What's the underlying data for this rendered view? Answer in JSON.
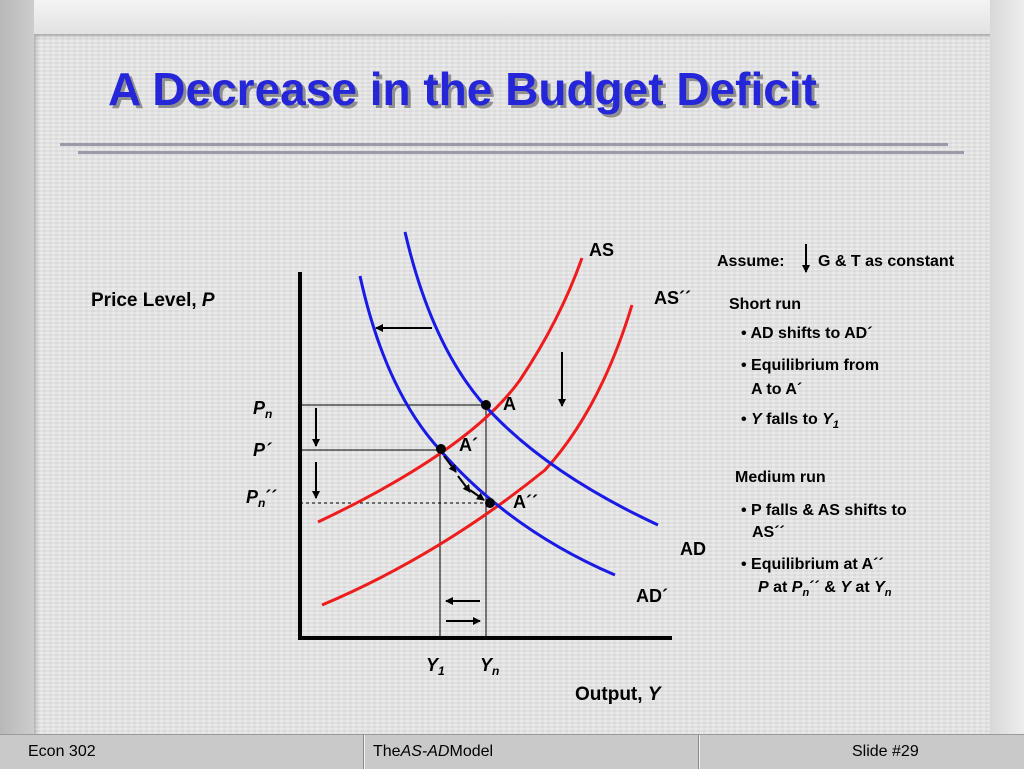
{
  "slide": {
    "title": "A Decrease in the Budget Deficit"
  },
  "chart_labels": {
    "y_axis": "Price Level, ",
    "y_axis_var": "P",
    "x_axis": "Output, ",
    "x_axis_var": "Y",
    "curve_as": "AS",
    "curve_as2": "AS´´",
    "curve_ad": "AD",
    "curve_ad2": "AD´",
    "point_a": "A",
    "point_a1": "A´",
    "point_a2": "A´´",
    "pn_base": "P",
    "pn_sub": "n",
    "p1": "P´",
    "pn2_base": "P",
    "pn2_sub": "n",
    "pn2_mark": "´´",
    "y1_base": "Y",
    "y1_sub": "1",
    "yn_base": "Y",
    "yn_sub": "n"
  },
  "notes": {
    "assume_prefix": "Assume:",
    "assume_text": "G & T as constant",
    "short_run": "Short run",
    "sr_item1": "• AD shifts to AD´",
    "sr_item2a": "• Equilibrium from",
    "sr_item2b": "A to A´",
    "sr_item3_bullet": "• ",
    "sr_item3_y": "Y",
    "sr_item3_mid": " falls to ",
    "sr_item3_y1": "Y",
    "sr_item3_sub": "1",
    "medium_run": "Medium run",
    "mr_item1a": "• P falls & AS shifts to",
    "mr_item1b": "AS´´",
    "mr_item2a": "• Equilibrium at A´´",
    "mr_item2_p": "P",
    "mr_item2_at1": " at ",
    "mr_item2_pn": "P",
    "mr_item2_pn_sub": "n",
    "mr_item2_mark": "´´",
    "mr_item2_amp": " & ",
    "mr_item2_y": "Y",
    "mr_item2_at2": " at ",
    "mr_item2_yn": "Y",
    "mr_item2_yn_sub": "n"
  },
  "footer": {
    "left": "Econ 302",
    "center_prefix": "The ",
    "center_italic": "AS-AD",
    "center_suffix": " Model",
    "right": "Slide #29"
  },
  "colors": {
    "title": "#2626d9",
    "as_curve": "#ee1c1c",
    "ad_curve": "#1a1ae6",
    "axis": "#000000"
  }
}
